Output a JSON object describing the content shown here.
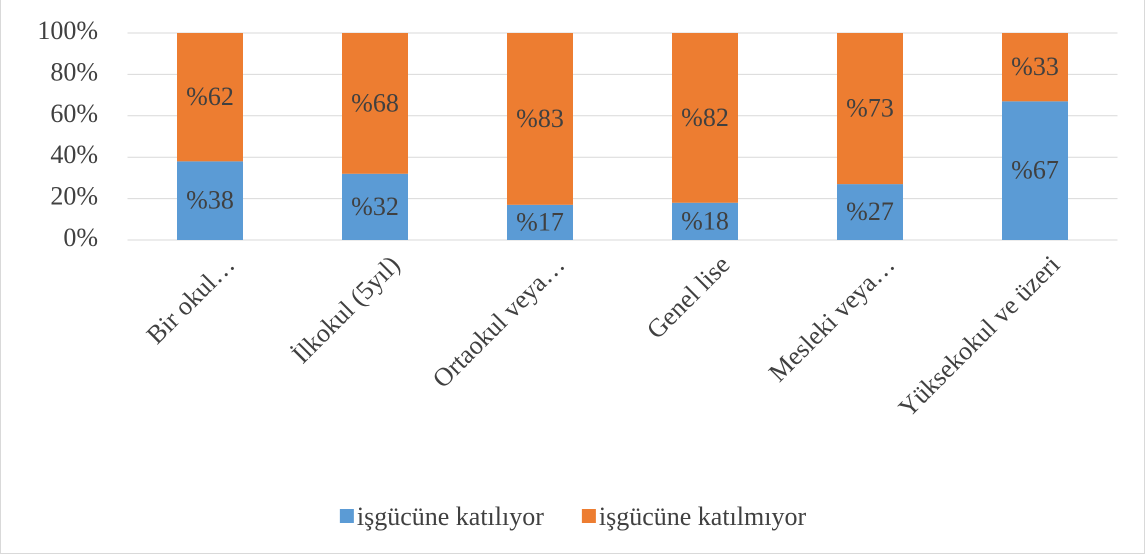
{
  "chart_data": {
    "type": "stacked_bar",
    "categories": [
      "Bir okul…",
      "İlkokul (5yıl)",
      "Ortaokul veya…",
      "Genel lise",
      "Mesleki veya…",
      "Yüksekokul ve üzeri"
    ],
    "series": [
      {
        "name": "işgücüne katılıyor",
        "color": "#5b9bd5",
        "values": [
          38,
          32,
          17,
          18,
          27,
          67
        ],
        "value_labels": [
          "%38",
          "%32",
          "%17",
          "%18",
          "%27",
          "%67"
        ]
      },
      {
        "name": "işgücüne katılmıyor",
        "color": "#ed7d31",
        "values": [
          62,
          68,
          83,
          82,
          73,
          33
        ],
        "value_labels": [
          "%62",
          "%68",
          "%83",
          "%82",
          "%73",
          "%33"
        ]
      }
    ],
    "ylim": [
      0,
      100
    ],
    "yticks": [
      {
        "value": 0,
        "label": "0%"
      },
      {
        "value": 20,
        "label": "20%"
      },
      {
        "value": 40,
        "label": "40%"
      },
      {
        "value": 60,
        "label": "60%"
      },
      {
        "value": 80,
        "label": "80%"
      },
      {
        "value": 100,
        "label": "100%"
      }
    ],
    "grid": true,
    "legend": "bottom"
  }
}
